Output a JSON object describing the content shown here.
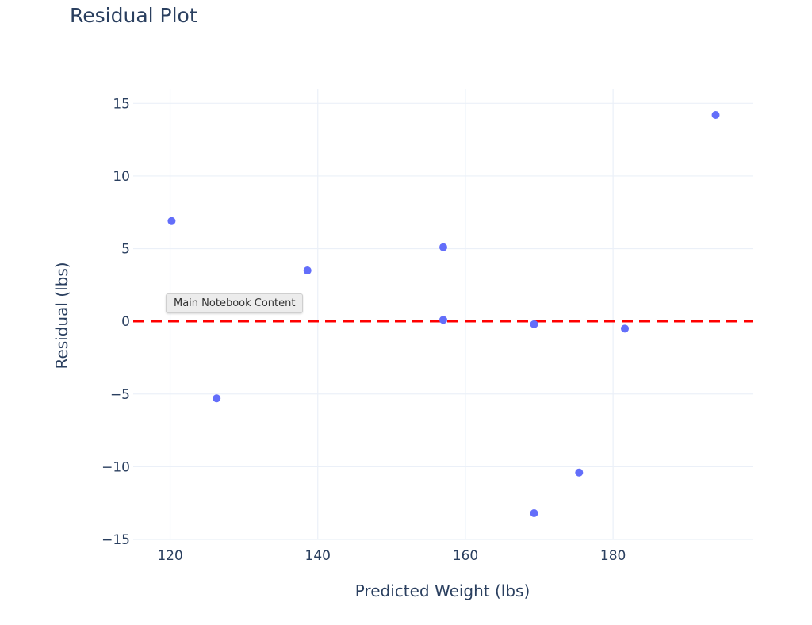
{
  "chart_data": {
    "type": "scatter",
    "title": "Residual Plot",
    "xlabel": "Predicted Weight (lbs)",
    "ylabel": "Residual (lbs)",
    "xlim": [
      115,
      199
    ],
    "ylim": [
      -15,
      16
    ],
    "x_ticks": [
      120,
      140,
      160,
      180
    ],
    "y_ticks": [
      15,
      10,
      5,
      0,
      -5,
      -10,
      -15
    ],
    "x_tick_labels": [
      "120",
      "140",
      "160",
      "180"
    ],
    "y_tick_labels": [
      "15",
      "10",
      "5",
      "0",
      "−5",
      "−10",
      "−15"
    ],
    "grid": true,
    "points": [
      {
        "x": 120.2,
        "y": 6.9
      },
      {
        "x": 126.3,
        "y": -5.3
      },
      {
        "x": 138.6,
        "y": 3.5
      },
      {
        "x": 157.0,
        "y": 5.1
      },
      {
        "x": 157.0,
        "y": 0.1
      },
      {
        "x": 169.3,
        "y": -0.2
      },
      {
        "x": 169.3,
        "y": -13.2
      },
      {
        "x": 175.4,
        "y": -10.4
      },
      {
        "x": 181.6,
        "y": -0.5
      },
      {
        "x": 193.9,
        "y": 14.2
      }
    ],
    "reference_line": {
      "y": 0,
      "style": "dashed",
      "color": "#ff0000"
    },
    "marker_color": "#636efa"
  },
  "tooltip": {
    "text": "Main Notebook Content"
  }
}
